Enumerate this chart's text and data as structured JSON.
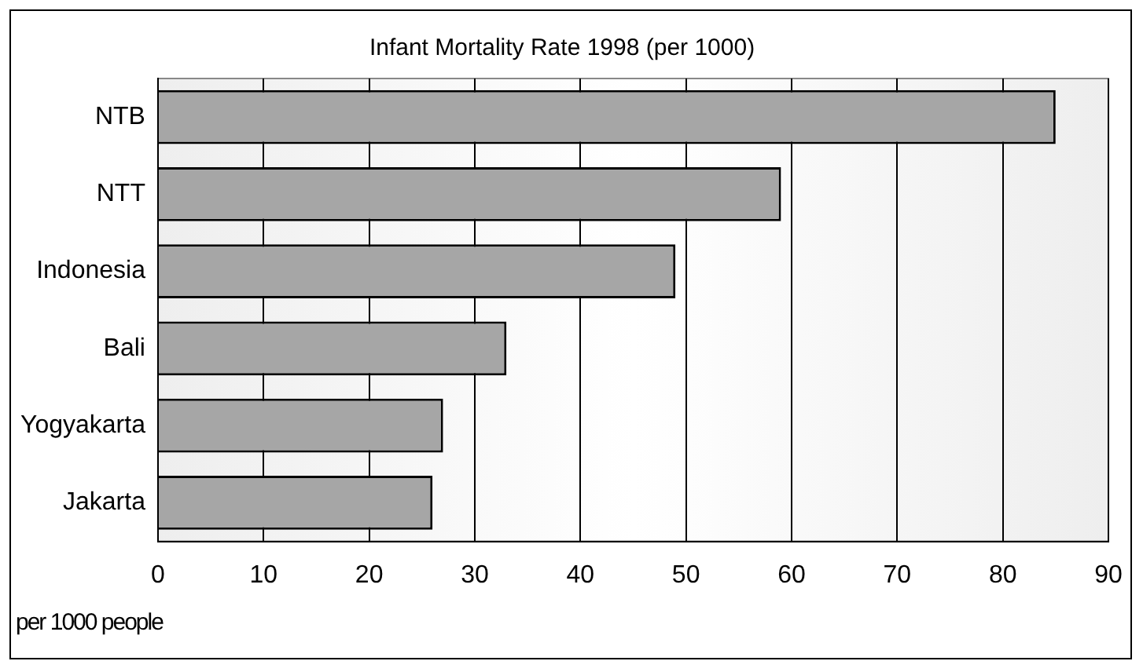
{
  "chart_data": {
    "type": "bar",
    "orientation": "horizontal",
    "title": "Infant Mortality Rate 1998 (per 1000)",
    "xlabel": "per 1000 people",
    "categories": [
      "NTB",
      "NTT",
      "Indonesia",
      "Bali",
      "Yogyakarta",
      "Jakarta"
    ],
    "values": [
      85,
      59,
      49,
      33,
      27,
      26
    ],
    "color": "#a6a6a6",
    "xlim": [
      0,
      90
    ],
    "xticks": [
      0,
      10,
      20,
      30,
      40,
      50,
      60,
      70,
      80,
      90
    ],
    "grid": "x",
    "legend": false
  }
}
